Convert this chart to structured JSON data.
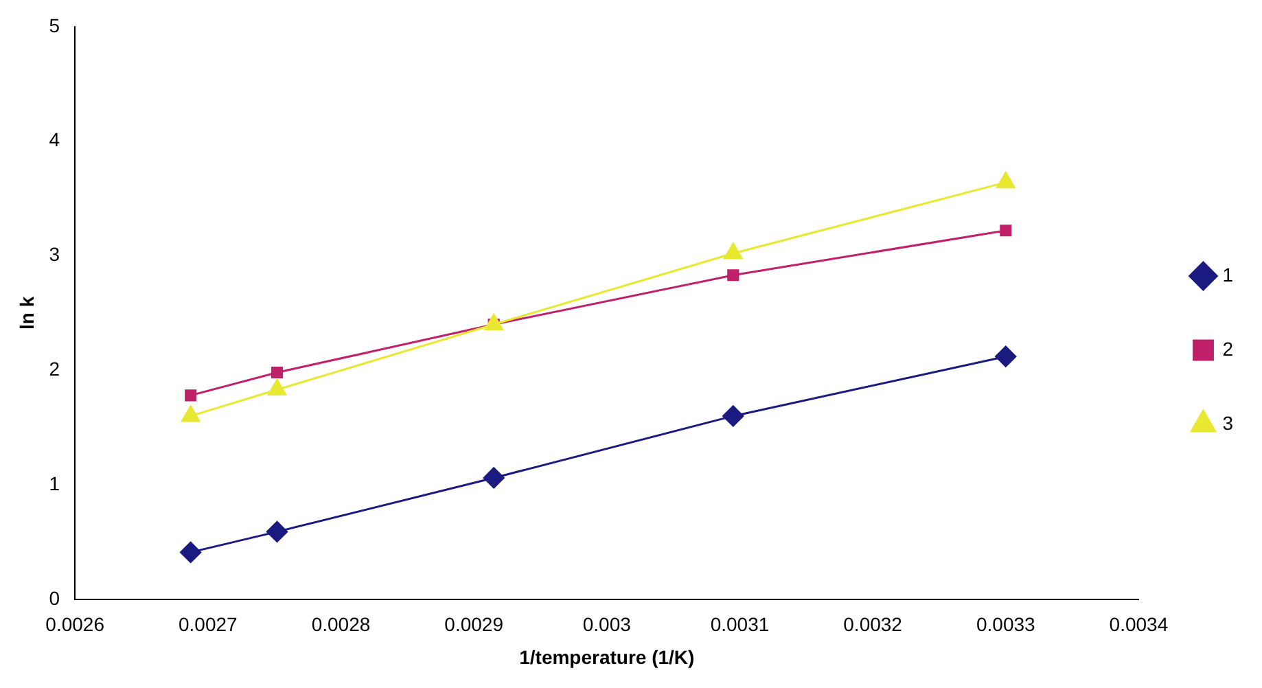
{
  "chart_data": {
    "type": "line",
    "xlabel": "1/temperature (1/K)",
    "ylabel": "ln k",
    "xlim": [
      0.0026,
      0.0034
    ],
    "xticks": [
      0.0026,
      0.0027,
      0.0028,
      0.0029,
      0.003,
      0.0031,
      0.0032,
      0.0033,
      0.0034
    ],
    "ylim": [
      0,
      5
    ],
    "yticks": [
      0,
      1,
      2,
      3,
      4,
      5
    ],
    "grid": false,
    "legend": "right",
    "series": [
      {
        "name": "1",
        "color": "#1a1a80",
        "marker": "diamond",
        "x": [
          0.002687,
          0.002752,
          0.002915,
          0.003095,
          0.0033
        ],
        "values": [
          0.41,
          0.59,
          1.06,
          1.6,
          2.12
        ]
      },
      {
        "name": "2",
        "color": "#c0206a",
        "marker": "square",
        "x": [
          0.002687,
          0.002752,
          0.002915,
          0.003095,
          0.0033
        ],
        "values": [
          1.78,
          1.98,
          2.4,
          2.83,
          3.22
        ]
      },
      {
        "name": "3",
        "color": "#e8e830",
        "marker": "triangle",
        "x": [
          0.002687,
          0.002752,
          0.002915,
          0.003095,
          0.0033
        ],
        "values": [
          1.6,
          1.83,
          2.4,
          3.02,
          3.64
        ]
      }
    ]
  }
}
